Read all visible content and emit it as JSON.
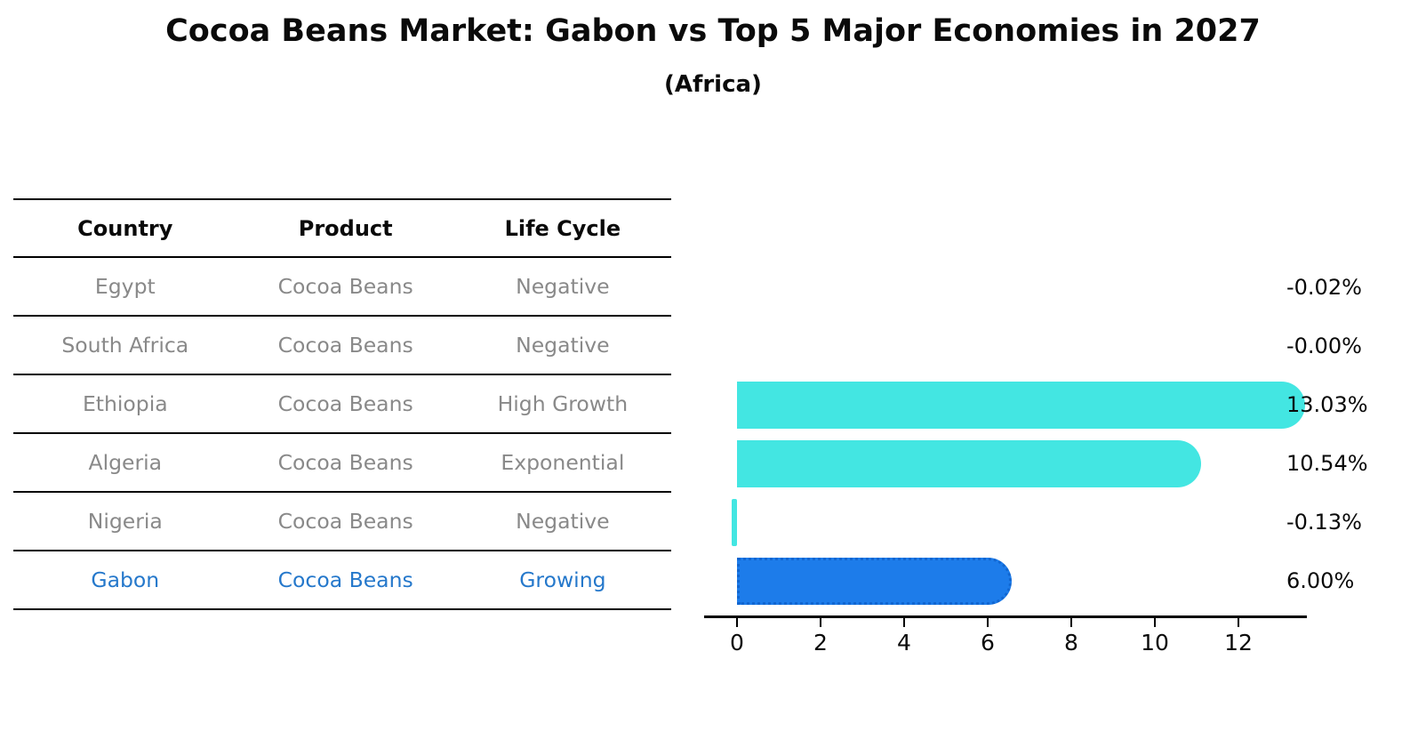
{
  "title": "Cocoa Beans Market: Gabon vs Top 5 Major Economies in 2027",
  "subtitle": "(Africa)",
  "table": {
    "headers": {
      "country": "Country",
      "product": "Product",
      "life_cycle": "Life Cycle"
    },
    "rows": [
      {
        "country": "Egypt",
        "product": "Cocoa Beans",
        "life_cycle": "Negative",
        "highlight": false
      },
      {
        "country": "South Africa",
        "product": "Cocoa Beans",
        "life_cycle": "Negative",
        "highlight": false
      },
      {
        "country": "Ethiopia",
        "product": "Cocoa Beans",
        "life_cycle": "High Growth",
        "highlight": false
      },
      {
        "country": "Algeria",
        "product": "Cocoa Beans",
        "life_cycle": "Exponential",
        "highlight": false
      },
      {
        "country": "Nigeria",
        "product": "Cocoa Beans",
        "life_cycle": "Negative",
        "highlight": false
      },
      {
        "country": "Gabon",
        "product": "Cocoa Beans",
        "life_cycle": "Growing",
        "highlight": true
      }
    ]
  },
  "chart_data": {
    "type": "bar",
    "orientation": "horizontal",
    "title": "Cocoa Beans Market: Gabon vs Top 5 Major Economies in 2027",
    "subtitle": "(Africa)",
    "categories": [
      "Egypt",
      "South Africa",
      "Ethiopia",
      "Algeria",
      "Nigeria",
      "Gabon"
    ],
    "values": [
      -0.02,
      -0.0,
      13.03,
      10.54,
      -0.13,
      6.0
    ],
    "value_labels": [
      "-0.02%",
      "-0.00%",
      "13.03%",
      "10.54%",
      "-0.13%",
      "6.00%"
    ],
    "unit": "percent",
    "x_ticks": [
      0,
      2,
      4,
      6,
      8,
      10,
      12
    ],
    "xlim": [
      -0.79,
      13.69
    ],
    "grid": false,
    "legend": "none",
    "colors": {
      "bar": "#43E6E2",
      "highlight_bar": "#1D7CEA",
      "highlight_bar_border": "#1166D0",
      "highlight_text": "#2578CB",
      "row_text": "#898989",
      "axis": "#000000"
    }
  }
}
